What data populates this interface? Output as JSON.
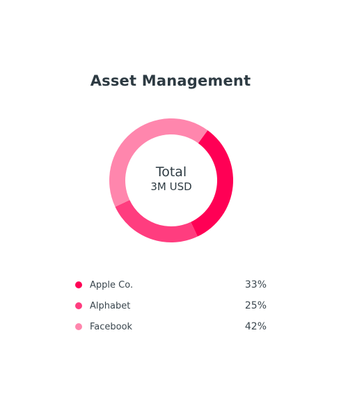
{
  "title": "Asset Management",
  "center": {
    "total_label": "Total",
    "total_value": "3M USD"
  },
  "chart_data": {
    "type": "pie",
    "title": "Asset Management",
    "donut": true,
    "categories": [
      "Apple Co.",
      "Alphabet",
      "Facebook"
    ],
    "values": [
      33,
      25,
      42
    ],
    "value_labels": [
      "33%",
      "25%",
      "42%"
    ],
    "colors": [
      "#ff0055",
      "#ff3d7f",
      "#ff86ad"
    ],
    "legend_position": "bottom"
  }
}
